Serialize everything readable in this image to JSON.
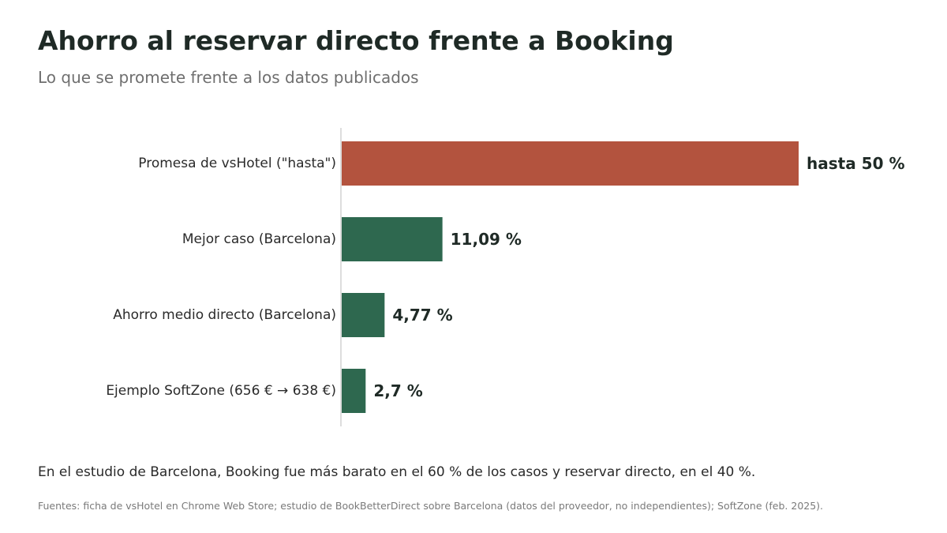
{
  "title": "Ahorro al reservar directo frente a Booking",
  "subtitle": "Lo que se promete frente a los datos publicados",
  "note": "En el estudio de Barcelona, Booking fue más barato en el 60 % de los casos y reservar directo, en el 40 %.",
  "source": "Fuentes: ficha de vsHotel en Chrome Web Store; estudio de BookBetterDirect sobre Barcelona (datos del proveedor, no independientes); SoftZone (feb. 2025).",
  "colors": {
    "promise": "#b3533e",
    "data": "#2e684f",
    "text": "#1f2a26",
    "axis": "#bbbbbb"
  },
  "chart_data": {
    "type": "bar",
    "orientation": "horizontal",
    "categories": [
      "Promesa de vsHotel (\"hasta\")",
      "Mejor caso (Barcelona)",
      "Ahorro medio directo (Barcelona)",
      "Ejemplo SoftZone (656 € → 638 €)"
    ],
    "values": [
      50,
      11.09,
      4.77,
      2.7
    ],
    "value_labels": [
      "hasta 50 %",
      "11,09 %",
      "4,77 %",
      "2,7 %"
    ],
    "bar_colors": [
      "#b3533e",
      "#2e684f",
      "#2e684f",
      "#2e684f"
    ],
    "xlim": [
      0,
      50
    ],
    "title": "Ahorro al reservar directo frente a Booking",
    "subtitle": "Lo que se promete frente a los datos publicados",
    "xlabel": "",
    "ylabel": "",
    "grid": false,
    "legend": "none"
  }
}
